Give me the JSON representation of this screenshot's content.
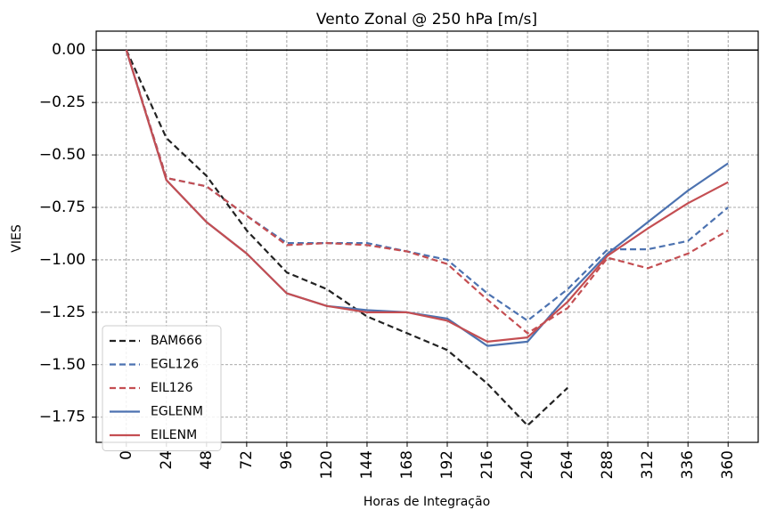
{
  "chart_data": {
    "type": "line",
    "title": "Vento Zonal @ 250 hPa [m/s]",
    "xlabel": "Horas de Integração",
    "ylabel": "VIES",
    "x": [
      0,
      24,
      48,
      72,
      96,
      120,
      144,
      168,
      192,
      216,
      240,
      264,
      288,
      312,
      336,
      360
    ],
    "xticks": [
      "0",
      "24",
      "48",
      "72",
      "96",
      "120",
      "144",
      "168",
      "192",
      "216",
      "240",
      "264",
      "288",
      "312",
      "336",
      "360"
    ],
    "yticks": [
      "0.00",
      "−0.25",
      "−0.50",
      "−0.75",
      "−1.00",
      "−1.25",
      "−1.50",
      "−1.75"
    ],
    "ytick_values": [
      0,
      -0.25,
      -0.5,
      -0.75,
      -1.0,
      -1.25,
      -1.5,
      -1.75
    ],
    "xlim": [
      -18,
      378
    ],
    "ylim": [
      -1.87,
      0.09
    ],
    "grid": true,
    "zero_line": true,
    "legend_position": "lower-left",
    "series": [
      {
        "name": "BAM666",
        "color": "#222222",
        "dash": true,
        "x": [
          0,
          24,
          48,
          72,
          96,
          120,
          144,
          168,
          192,
          216,
          240,
          264
        ],
        "values": [
          0,
          -0.42,
          -0.6,
          -0.86,
          -1.06,
          -1.14,
          -1.27,
          -1.35,
          -1.43,
          -1.59,
          -1.79,
          -1.61
        ]
      },
      {
        "name": "EGL126",
        "color": "#4c72b0",
        "dash": true,
        "x": [
          0,
          24,
          48,
          72,
          96,
          120,
          144,
          168,
          192,
          216,
          240,
          264,
          288,
          312,
          336,
          360
        ],
        "values": [
          0,
          -0.61,
          -0.65,
          -0.79,
          -0.92,
          -0.92,
          -0.92,
          -0.96,
          -1.0,
          -1.16,
          -1.29,
          -1.14,
          -0.95,
          -0.95,
          -0.91,
          -0.75
        ]
      },
      {
        "name": "EIL126",
        "color": "#c44e52",
        "dash": true,
        "x": [
          0,
          24,
          48,
          72,
          96,
          120,
          144,
          168,
          192,
          216,
          240,
          264,
          288,
          312,
          336,
          360
        ],
        "values": [
          0,
          -0.61,
          -0.65,
          -0.79,
          -0.93,
          -0.92,
          -0.93,
          -0.96,
          -1.02,
          -1.19,
          -1.35,
          -1.23,
          -0.99,
          -1.04,
          -0.97,
          -0.86
        ]
      },
      {
        "name": "EGLENM",
        "color": "#4c72b0",
        "dash": false,
        "x": [
          0,
          24,
          48,
          72,
          96,
          120,
          144,
          168,
          192,
          216,
          240,
          264,
          288,
          312,
          336,
          360
        ],
        "values": [
          0,
          -0.62,
          -0.82,
          -0.97,
          -1.16,
          -1.22,
          -1.24,
          -1.25,
          -1.28,
          -1.41,
          -1.39,
          -1.17,
          -0.97,
          -0.82,
          -0.67,
          -0.54
        ]
      },
      {
        "name": "EILENM",
        "color": "#c44e52",
        "dash": false,
        "x": [
          0,
          24,
          48,
          72,
          96,
          120,
          144,
          168,
          192,
          216,
          240,
          264,
          288,
          312,
          336,
          360
        ],
        "values": [
          0,
          -0.62,
          -0.82,
          -0.97,
          -1.16,
          -1.22,
          -1.25,
          -1.25,
          -1.29,
          -1.39,
          -1.37,
          -1.2,
          -0.98,
          -0.85,
          -0.73,
          -0.63
        ]
      }
    ]
  }
}
